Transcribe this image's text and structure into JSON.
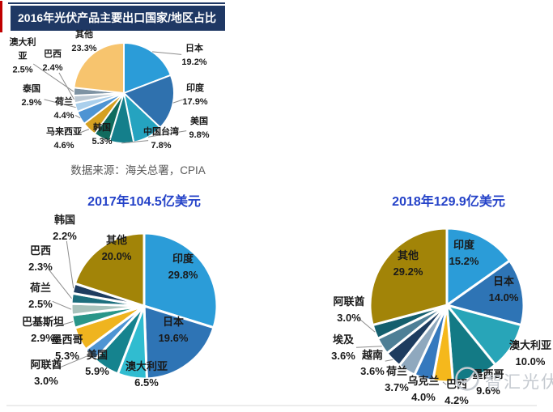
{
  "banner": {
    "title": "2016年光伏产品主要出口国家/地区占比"
  },
  "source_note": "数据来源：海关总署，CPIA",
  "watermark": {
    "text": "智汇光伏",
    "icon": "logo-circle-icon"
  },
  "colors": {
    "banner_bg": "#1F3864",
    "banner_text": "#FFFFFF",
    "accent_red": "#C00000",
    "chart_title_blue": "#2442C8",
    "label_text": "#1A1A1A",
    "callout_line": "#8C8C8C",
    "watermark_gray": "#C5CAD0",
    "source_text": "#595959"
  },
  "chart_data": [
    {
      "type": "pie",
      "title": "2016年光伏产品主要出口国家/地区占比",
      "unit": "%",
      "legend_position": "callout-labels",
      "slices": [
        {
          "label": "日本",
          "value": 19.2,
          "color": "#2B9CD8"
        },
        {
          "label": "印度",
          "value": 17.9,
          "color": "#2F71AE"
        },
        {
          "label": "美国",
          "value": 9.8,
          "color": "#25A3C0"
        },
        {
          "label": "中国台湾",
          "value": 7.8,
          "color": "#147F8B"
        },
        {
          "label": "韩国",
          "value": 5.3,
          "color": "#106B5E"
        },
        {
          "label": "马来西亚",
          "value": 4.6,
          "color": "#D5A021"
        },
        {
          "label": "荷兰",
          "value": 4.4,
          "color": "#4E94D3"
        },
        {
          "label": "泰国",
          "value": 2.9,
          "color": "#AACFEC"
        },
        {
          "label": "巴西",
          "value": 2.4,
          "color": "#BCC9D4"
        },
        {
          "label": "澳大利亚",
          "value": 2.5,
          "color": "#7E93A3"
        },
        {
          "label": "其他",
          "value": 23.3,
          "color": "#F7C46E"
        }
      ]
    },
    {
      "type": "pie",
      "title": "2017年104.5亿美元",
      "unit": "%",
      "legend_position": "callout-labels",
      "slices": [
        {
          "label": "印度",
          "value": 29.8,
          "color": "#2B9CD8"
        },
        {
          "label": "日本",
          "value": 19.6,
          "color": "#2E74B5"
        },
        {
          "label": "澳大利亚",
          "value": 6.5,
          "color": "#30BCD0"
        },
        {
          "label": "美国",
          "value": 5.9,
          "color": "#15838E"
        },
        {
          "label": "阿联酋",
          "value": 3.0,
          "color": "#4E94D3"
        },
        {
          "label": "墨西哥",
          "value": 5.3,
          "color": "#EFB41F"
        },
        {
          "label": "巴基斯坦",
          "value": 2.9,
          "color": "#299689"
        },
        {
          "label": "荷兰",
          "value": 2.5,
          "color": "#A8C3BC"
        },
        {
          "label": "巴西",
          "value": 2.3,
          "color": "#1C6E7D"
        },
        {
          "label": "韩国",
          "value": 2.2,
          "color": "#1E3C5F"
        },
        {
          "label": "其他",
          "value": 20.0,
          "color": "#A28408"
        }
      ]
    },
    {
      "type": "pie",
      "title": "2018年129.9亿美元",
      "unit": "%",
      "legend_position": "callout-labels",
      "slices": [
        {
          "label": "印度",
          "value": 15.2,
          "color": "#2B9CD8"
        },
        {
          "label": "日本",
          "value": 14.0,
          "color": "#2E74B5"
        },
        {
          "label": "澳大利亚",
          "value": 10.0,
          "color": "#28A5B8"
        },
        {
          "label": "墨西哥",
          "value": 9.6,
          "color": "#137A85"
        },
        {
          "label": "巴西",
          "value": 4.2,
          "color": "#F5B81C"
        },
        {
          "label": "乌克兰",
          "value": 4.0,
          "color": "#3579BE"
        },
        {
          "label": "荷兰",
          "value": 3.7,
          "color": "#8FA8BE"
        },
        {
          "label": "越南",
          "value": 3.6,
          "color": "#1E3C5F"
        },
        {
          "label": "埃及",
          "value": 3.6,
          "color": "#4E7F96"
        },
        {
          "label": "阿联酋",
          "value": 3.0,
          "color": "#145F6E"
        },
        {
          "label": "其他",
          "value": 29.2,
          "color": "#A28408"
        }
      ]
    }
  ]
}
